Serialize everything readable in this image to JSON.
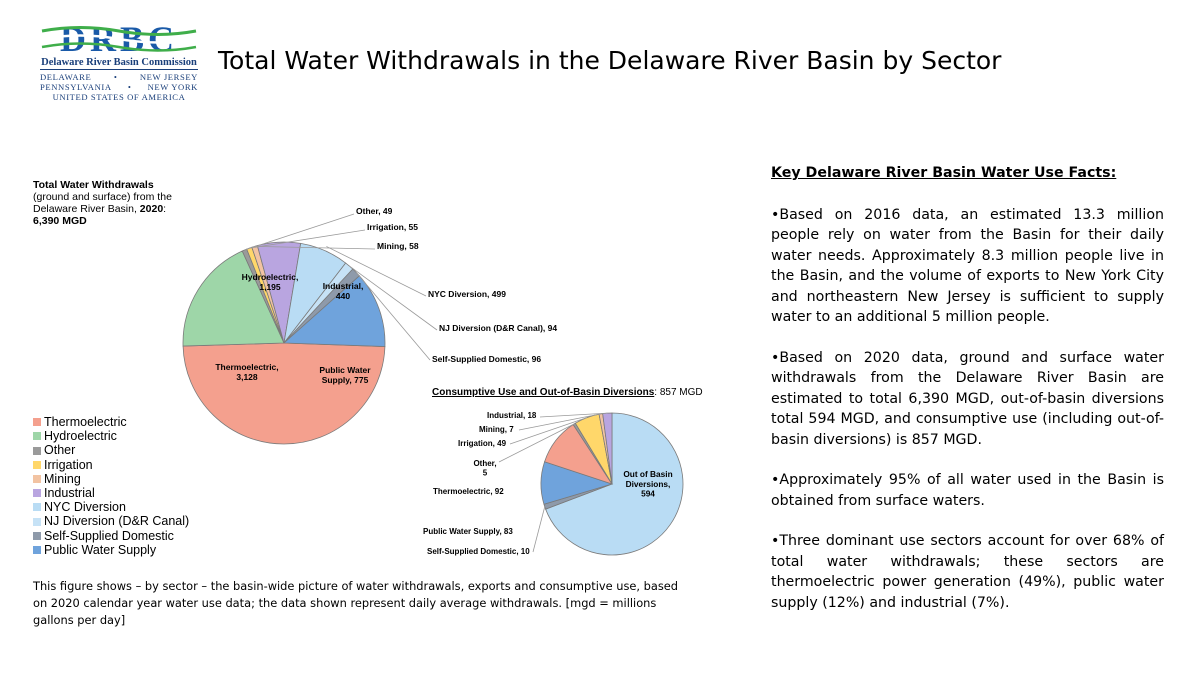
{
  "header": {
    "title": "Total Water Withdrawals in the Delaware River Basin by Sector"
  },
  "logo": {
    "letters": "DRBC",
    "org_name": "Delaware River Basin Commission",
    "state_1": "DELAWARE",
    "state_2": "NEW JERSEY",
    "state_3": "PENNSYLVANIA",
    "state_4": "NEW YORK",
    "state_5": "UNITED STATES OF AMERICA",
    "bullet": "•"
  },
  "chart_heading": {
    "line1": "Total Water Withdrawals",
    "line2": "(ground and surface) from the Delaware River Basin, ",
    "year": "2020",
    "colon": ":",
    "total": "6,390 MGD"
  },
  "chart_data": [
    {
      "type": "pie",
      "title": "Total Water Withdrawals (ground and surface) from the Delaware River Basin, 2020: 6,390 MGD",
      "units": "MGD",
      "slices": [
        {
          "name": "Thermoelectric",
          "label": "Thermoelectric,",
          "value_label": "3,128",
          "value": 3128,
          "color": "#f4a08e"
        },
        {
          "name": "Hydroelectric",
          "label": "Hydroelectric,",
          "value_label": "1,195",
          "value": 1195,
          "color": "#9ed6a8"
        },
        {
          "name": "Other",
          "label": "Other, 49",
          "value": 49,
          "color": "#9a9a9a"
        },
        {
          "name": "Irrigation",
          "label": "Irrigation, 55",
          "value": 55,
          "color": "#ffd76a"
        },
        {
          "name": "Mining",
          "label": "Mining, 58",
          "value": 58,
          "color": "#f2c3a2"
        },
        {
          "name": "Industrial",
          "label": "Industrial,",
          "value_label": "440",
          "value": 440,
          "color": "#b9a5e0"
        },
        {
          "name": "NYC Diversion",
          "label": "NYC Diversion, 499",
          "value": 499,
          "color": "#b9dcf4"
        },
        {
          "name": "NJ Diversion (D&R Canal)",
          "label": "NJ Diversion (D&R Canal), 94",
          "value": 94,
          "color": "#c6e2f6"
        },
        {
          "name": "Self-Supplied Domestic",
          "label": "Self-Supplied Domestic, 96",
          "value": 96,
          "color": "#8e9aaa"
        },
        {
          "name": "Public Water Supply",
          "label": "Public Water",
          "value_label": "Supply, 775",
          "value": 775,
          "color": "#6fa3dc"
        }
      ]
    },
    {
      "type": "pie",
      "title": "Consumptive Use and Out-of-Basin Diversions: 857 MGD",
      "units": "MGD",
      "slices": [
        {
          "name": "Out of Basin Diversions",
          "label": "Out of Basin",
          "value_label": "Diversions,",
          "value_label2": "594",
          "value": 594,
          "color": "#b9dcf4"
        },
        {
          "name": "Self-Supplied Domestic",
          "label": "Self-Supplied Domestic, 10",
          "value": 10,
          "color": "#8e9aaa"
        },
        {
          "name": "Public Water Supply",
          "label": "Public Water Supply, 83",
          "value": 83,
          "color": "#6fa3dc"
        },
        {
          "name": "Thermoelectric",
          "label": "Thermoelectric, 92",
          "value": 92,
          "color": "#f4a08e"
        },
        {
          "name": "Other",
          "label": "Other,",
          "value_label": "5",
          "value": 5,
          "color": "#9a9a9a"
        },
        {
          "name": "Irrigation",
          "label": "Irrigation, 49",
          "value": 49,
          "color": "#ffd76a"
        },
        {
          "name": "Mining",
          "label": "Mining, 7",
          "value": 7,
          "color": "#f2c3a2"
        },
        {
          "name": "Industrial",
          "label": "Industrial, 18",
          "value": 18,
          "color": "#b9a5e0"
        }
      ]
    }
  ],
  "consumptive_heading": {
    "title": "Consumptive Use and Out-of-Basin Diversions",
    "suffix": ": 857 MGD"
  },
  "legend": {
    "placement": "bottom-left",
    "items": [
      {
        "label": "Thermoelectric",
        "color": "#f4a08e"
      },
      {
        "label": "Hydroelectric",
        "color": "#9ed6a8"
      },
      {
        "label": "Other",
        "color": "#9a9a9a"
      },
      {
        "label": "Irrigation",
        "color": "#ffd76a"
      },
      {
        "label": "Mining",
        "color": "#f2c3a2"
      },
      {
        "label": "Industrial",
        "color": "#b9a5e0"
      },
      {
        "label": "NYC Diversion",
        "color": "#b9dcf4"
      },
      {
        "label": "NJ Diversion (D&R Canal)",
        "color": "#c6e2f6"
      },
      {
        "label": "Self-Supplied Domestic",
        "color": "#8e9aaa"
      },
      {
        "label": "Public Water Supply",
        "color": "#6fa3dc"
      }
    ]
  },
  "caption": "This figure shows – by sector – the basin-wide picture of water withdrawals, exports and consumptive use, based on 2020 calendar year water use data; the data shown represent daily average withdrawals. [mgd = millions gallons per day]",
  "facts": {
    "heading": "Key Delaware River Basin Water Use Facts:",
    "items": [
      "•Based on 2016 data, an estimated 13.3 million people rely on water from the Basin for their daily water needs. Approximately 8.3 million people live in the Basin, and the volume of exports to New York City and northeastern New Jersey is sufficient to supply water to an additional 5 million people.",
      "•Based on 2020 data, ground and surface water withdrawals from the Delaware River Basin are estimated to total 6,390 MGD, out-of-basin diversions total 594 MGD, and consumptive use (including out-of-basin diversions) is 857 MGD.",
      "•Approximately 95% of all water used in the Basin is obtained from surface waters.",
      "•Three dominant use sectors account for over 68% of total water withdrawals; these sectors are thermoelectric power generation (49%), public water supply (12%) and industrial (7%)."
    ]
  }
}
